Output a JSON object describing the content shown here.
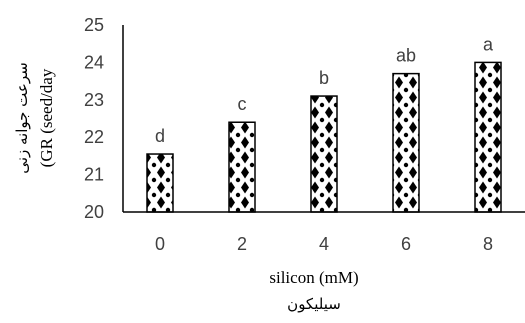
{
  "chart_data": {
    "type": "bar",
    "categories": [
      "0",
      "2",
      "4",
      "6",
      "8"
    ],
    "values": [
      21.55,
      22.4,
      23.1,
      23.7,
      24.0
    ],
    "data_labels": [
      "d",
      "c",
      "b",
      "ab",
      "a"
    ],
    "title": "",
    "xlabel": "silicon (mM)",
    "xlabel_secondary": "سیلیکون",
    "ylabel": "(GR (seed/day",
    "ylabel_secondary": "سرعت جوانه زنی",
    "ylim": [
      20,
      25
    ],
    "yticks": [
      "20",
      "21",
      "22",
      "23",
      "24",
      "25"
    ],
    "grid": false,
    "bar_fill": "black-diamond-pattern-on-white",
    "colors": {
      "bar_pattern": "#000000",
      "bar_background": "#ffffff",
      "axis": "#000000",
      "text": "#404040"
    }
  }
}
